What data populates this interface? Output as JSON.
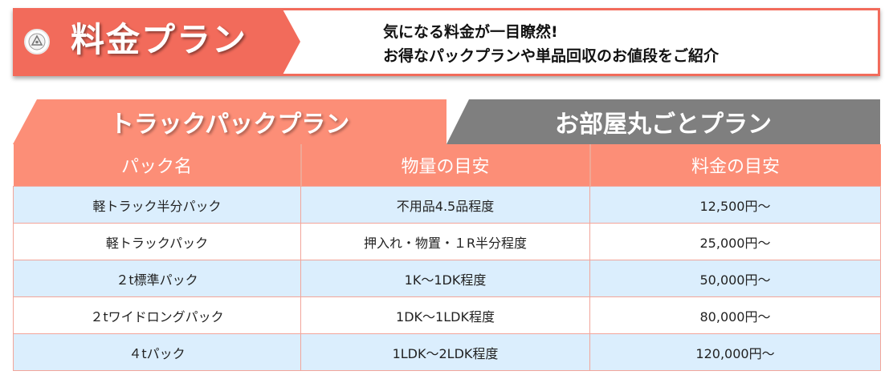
{
  "banner": {
    "title": "料金プラン",
    "line1": "気になる料金が一目瞭然!",
    "line2": "お得なパックプランや単品回収のお値段をご紹介"
  },
  "tabs": [
    {
      "label": "トラックパックプラン",
      "active": true
    },
    {
      "label": "お部屋丸ごとプラン",
      "active": false
    }
  ],
  "table": {
    "headers": [
      "パック名",
      "物量の目安",
      "料金の目安"
    ],
    "rows": [
      [
        "軽トラック半分パック",
        "不用品4.5品程度",
        "12,500円〜"
      ],
      [
        "軽トラックパック",
        "押入れ・物置・１R半分程度",
        "25,000円〜"
      ],
      [
        "２t標準パック",
        "1K〜1DK程度",
        "50,000円〜"
      ],
      [
        "２tワイドロングパック",
        "1DK〜1LDK程度",
        "80,000円〜"
      ],
      [
        "４tパック",
        "1LDK〜2LDK程度",
        "120,000円〜"
      ]
    ]
  },
  "colors": {
    "accent": "#f26b5b",
    "tab_active": "#fc8e77",
    "tab_inactive": "#7f7f7f",
    "row_alt": "#dbeefd"
  },
  "icons": {
    "logo": "recycle-logo-icon"
  }
}
